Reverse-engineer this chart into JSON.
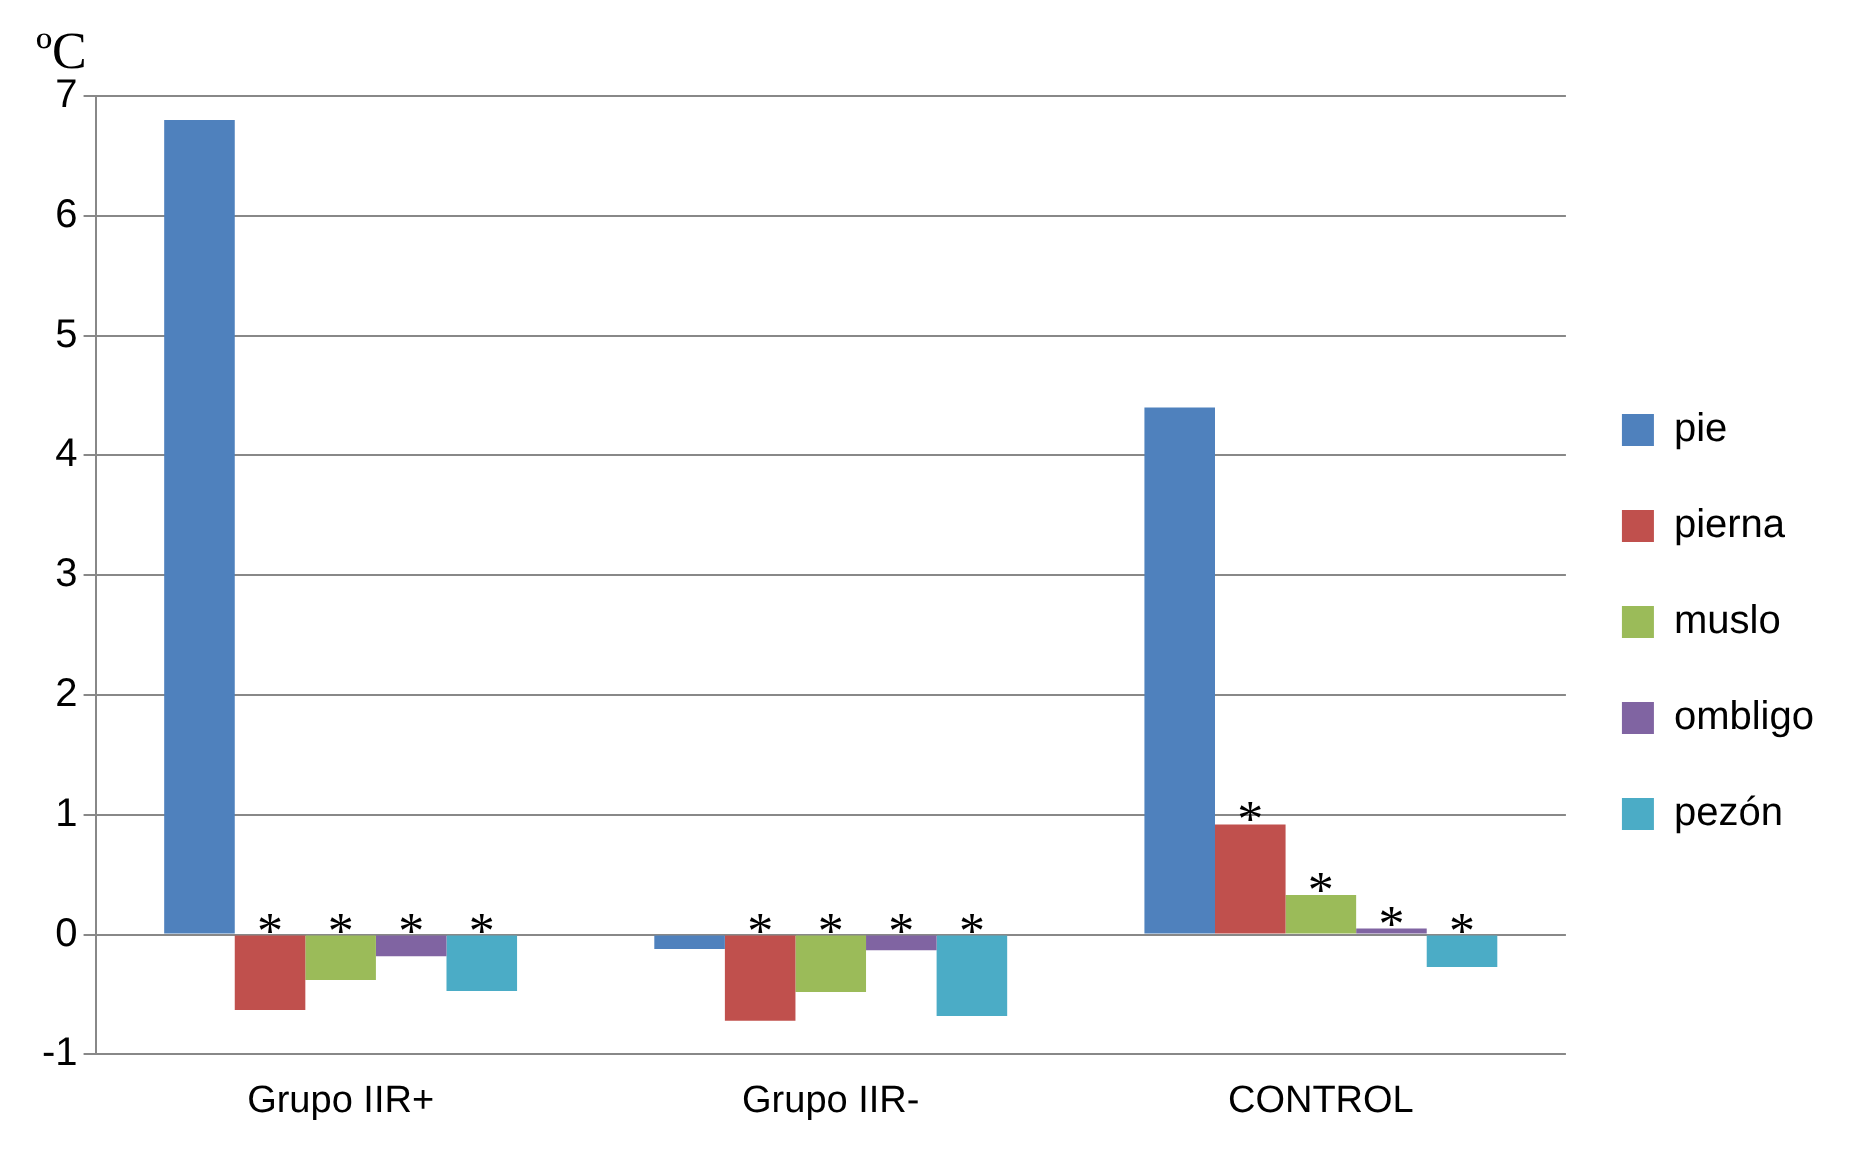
{
  "chart_data": {
    "type": "bar",
    "ylabel": "ºC",
    "categories": [
      "Grupo IIR+",
      "Grupo IIR-",
      "CONTROL"
    ],
    "series": [
      {
        "name": "pie",
        "color": "#4f81bd",
        "values": [
          6.8,
          -0.12,
          4.4
        ]
      },
      {
        "name": "pierna",
        "color": "#c0504d",
        "values": [
          -0.63,
          -0.72,
          0.92
        ],
        "value_labels": [
          "*",
          "*",
          "*"
        ]
      },
      {
        "name": "muslo",
        "color": "#9bbb59",
        "values": [
          -0.38,
          -0.48,
          0.33
        ],
        "value_labels": [
          "*",
          "*",
          "*"
        ]
      },
      {
        "name": "ombligo",
        "color": "#8064a2",
        "values": [
          -0.18,
          -0.13,
          0.05
        ],
        "value_labels": [
          "*",
          "*",
          "*"
        ]
      },
      {
        "name": "pezón",
        "color": "#4bacc6",
        "values": [
          -0.47,
          -0.68,
          -0.27
        ],
        "value_labels": [
          "*",
          "*",
          "*"
        ]
      }
    ],
    "ylim": [
      -1,
      7
    ],
    "yticks": [
      -1,
      0,
      1,
      2,
      3,
      4,
      5,
      6,
      7
    ],
    "grid": "y",
    "legend": "right"
  }
}
